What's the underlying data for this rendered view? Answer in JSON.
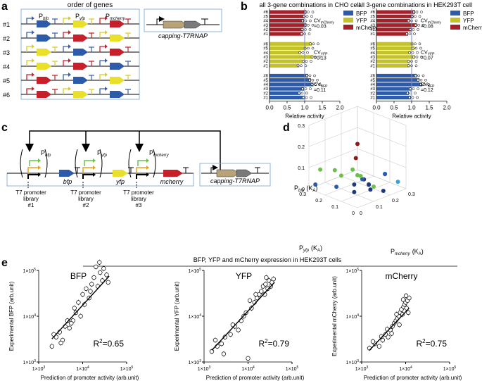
{
  "panel_a": {
    "letter": "a",
    "title": "order of genes",
    "p_bfp": "P",
    "p_bfp_sub": "bfp",
    "p_yfp": "P",
    "p_yfp_sub": "yfp",
    "p_mcherry": "P",
    "p_mcherry_sub": "mcherry",
    "construct_labels": [
      "#1",
      "#2",
      "#3",
      "#4",
      "#5",
      "#6"
    ],
    "construct_orders": [
      [
        "blue",
        "yellow",
        "red"
      ],
      [
        "blue",
        "red",
        "yellow"
      ],
      [
        "yellow",
        "blue",
        "red"
      ],
      [
        "yellow",
        "red",
        "blue"
      ],
      [
        "red",
        "blue",
        "yellow"
      ],
      [
        "red",
        "yellow",
        "blue"
      ]
    ],
    "helper_label": "capping-T7RNAP"
  },
  "panel_b": {
    "letter": "b",
    "cho": {
      "title": "all 3-gene combinations in CHO cell",
      "row_labels": [
        "#6",
        "#5",
        "#4",
        "#3",
        "#2",
        "#1"
      ],
      "groups": [
        {
          "name": "mCherry",
          "color": "#A6202A",
          "cv_main": "CV",
          "cv_sub": "mCherry",
          "cv_val": "=0.03",
          "values": [
            1.05,
            1.02,
            0.98,
            1.05,
            0.97,
            0.95
          ]
        },
        {
          "name": "YFP",
          "color": "#C4C22A",
          "cv_main": "CV",
          "cv_sub": "YFP",
          "cv_val": "=0.13",
          "values": [
            1.2,
            1.05,
            0.9,
            1.25,
            1.0,
            0.85
          ]
        },
        {
          "name": "BFP",
          "color": "#2D5AA9",
          "cv_main": "CV",
          "cv_sub": "BFP",
          "cv_val": "=0.11",
          "values": [
            1.1,
            1.18,
            1.25,
            0.98,
            0.88,
            1.0
          ]
        }
      ],
      "xlabel": "Relative activity",
      "xticks": [
        "0.0",
        "0.5",
        "1.0",
        "1.5",
        "2.0"
      ],
      "xlim": [
        0,
        2
      ]
    },
    "hek": {
      "title": "all 3-gene combinations in HEK293T cell",
      "row_labels": [
        "#6",
        "#5",
        "#4",
        "#3",
        "#2",
        "#1"
      ],
      "groups": [
        {
          "name": "mCherry",
          "color": "#A6202A",
          "cv_main": "CV",
          "cv_sub": "mCherry",
          "cv_val": "=0.08",
          "values": [
            1.1,
            1.05,
            0.95,
            1.15,
            1.0,
            0.9
          ]
        },
        {
          "name": "YFP",
          "color": "#C4C22A",
          "cv_main": "CV",
          "cv_sub": "YFP",
          "cv_val": "=0.07",
          "values": [
            1.05,
            1.08,
            0.98,
            1.1,
            0.95,
            0.95
          ]
        },
        {
          "name": "BFP",
          "color": "#2D5AA9",
          "cv_main": "CV",
          "cv_sub": "BFP",
          "cv_val": "=0.12",
          "values": [
            1.15,
            1.22,
            1.3,
            1.0,
            0.92,
            0.98
          ]
        }
      ],
      "xlabel": "Relative activity",
      "xticks": [
        "0.0",
        "0.5",
        "1.0",
        "1.5",
        "2.0"
      ],
      "xlim": [
        0,
        2
      ]
    },
    "legend": [
      "BFP",
      "YFP",
      "mCherry"
    ],
    "colors": {
      "bfp": "#2D5AA9",
      "yfp": "#C4C22A",
      "mcherry": "#A6202A"
    }
  },
  "panel_c": {
    "letter": "c",
    "p_bfp": "P",
    "p_bfp_sub": "bfp",
    "p_yfp": "P",
    "p_yfp_sub": "yfp",
    "p_mcherry": "P",
    "p_mcherry_sub": "mcherry",
    "gene_bfp": "bfp",
    "gene_yfp": "yfp",
    "gene_mcherry": "mcherry",
    "lib1": [
      "T7 promoter",
      "library",
      "#1"
    ],
    "lib2": [
      "T7 promoter",
      "library",
      "#2"
    ],
    "lib3": [
      "T7 promoter",
      "library",
      "#3"
    ],
    "helper_label": "capping-T7RNAP"
  },
  "panel_d": {
    "letter": "d",
    "z_label": "P",
    "z_sub": "bfp",
    "z_unit": "(K",
    "z_unit_sub": "A",
    "z_close": ")",
    "y_label": "P",
    "y_sub": "yfp",
    "y_unit": "(K",
    "y_unit_sub": "A",
    "y_close": ")",
    "x_label": "P",
    "x_sub": "mcherry",
    "x_unit": "(K",
    "x_unit_sub": "A",
    "x_close": ")",
    "z_ticks": [
      "0",
      "0.1",
      "0.2",
      "0.3"
    ],
    "y_ticks": [
      "0.3",
      "0.2",
      "0.1",
      "0"
    ],
    "x_ticks": [
      "0",
      "0.1",
      "0.2",
      "0.3"
    ],
    "points": [
      {
        "x": 0.02,
        "y": 0.02,
        "z": 0.29,
        "color": "#8B1A1A"
      },
      {
        "x": 0.02,
        "y": 0.03,
        "z": 0.22,
        "color": "#8B1A1A"
      },
      {
        "x": 0.02,
        "y": 0.25,
        "z": 0.1,
        "color": "#6CC04A"
      },
      {
        "x": 0.06,
        "y": 0.2,
        "z": 0.1,
        "color": "#6CC04A"
      },
      {
        "x": 0.12,
        "y": 0.15,
        "z": 0.1,
        "color": "#6CC04A"
      },
      {
        "x": 0.02,
        "y": 0.12,
        "z": 0.11,
        "color": "#6CC04A"
      },
      {
        "x": 0.22,
        "y": 0.05,
        "z": 0.08,
        "color": "#3AA0DA"
      },
      {
        "x": 0.28,
        "y": 0.03,
        "z": 0.03,
        "color": "#3AA0DA"
      },
      {
        "x": 0.02,
        "y": 0.28,
        "z": 0.02,
        "color": "#2D5AA9"
      },
      {
        "x": 0.05,
        "y": 0.18,
        "z": 0.03,
        "color": "#2D5AA9"
      },
      {
        "x": 0.12,
        "y": 0.05,
        "z": 0.06,
        "color": "#2D5AA9"
      },
      {
        "x": 0.15,
        "y": 0.08,
        "z": 0.04,
        "color": "#1F3A7A"
      },
      {
        "x": 0.1,
        "y": 0.02,
        "z": 0.05,
        "color": "#1F3A7A"
      },
      {
        "x": 0.18,
        "y": 0.02,
        "z": 0.02,
        "color": "#1F3A7A"
      },
      {
        "x": 0.08,
        "y": 0.1,
        "z": 0.02,
        "color": "#1F3A7A"
      },
      {
        "x": 0.04,
        "y": 0.06,
        "z": 0.08,
        "color": "#1F3A7A"
      },
      {
        "x": 0.16,
        "y": 0.12,
        "z": 0.05,
        "color": "#1F3A7A"
      },
      {
        "x": 0.09,
        "y": 0.06,
        "z": 0.09,
        "color": "#2D5AA9"
      },
      {
        "x": 0.2,
        "y": 0.1,
        "z": 0.01,
        "color": "#6CC04A"
      },
      {
        "x": 0.14,
        "y": 0.14,
        "z": 0.07,
        "color": "#6CC04A"
      },
      {
        "x": 0.06,
        "y": 0.04,
        "z": 0.12,
        "color": "#6CC04A"
      },
      {
        "x": 0.25,
        "y": 0.08,
        "z": 0.06,
        "color": "#2D5AA9"
      }
    ]
  },
  "panel_e": {
    "letter": "e",
    "heading": "BFP, YFP and mCherry expression in HEK293T cells",
    "xlabel": "Prediction of promoter activity (arb.unit)",
    "xticks": [
      {
        "m": "1×10",
        "e": "3"
      },
      {
        "m": "1×10",
        "e": "4"
      },
      {
        "m": "1×10",
        "e": "5"
      }
    ],
    "yticks": [
      {
        "m": "1×10",
        "e": "3"
      },
      {
        "m": "1×10",
        "e": "4"
      },
      {
        "m": "1×10",
        "e": "5"
      }
    ],
    "charts": [
      {
        "title": "BFP",
        "ylabel": "Experimental BFP   (arb.unit)",
        "r2_main": "R",
        "r2_sup": "2",
        "r2_val": "=0.65",
        "fit": [
          [
            2000,
            3200
          ],
          [
            40000,
            75000
          ]
        ],
        "points": [
          [
            2000,
            2200
          ],
          [
            2500,
            3500
          ],
          [
            3000,
            4500
          ],
          [
            3500,
            3000
          ],
          [
            4000,
            6000
          ],
          [
            5000,
            5500
          ],
          [
            6000,
            8000
          ],
          [
            7000,
            12000
          ],
          [
            8000,
            20000
          ],
          [
            9000,
            10000
          ],
          [
            10000,
            30000
          ],
          [
            12000,
            40000
          ],
          [
            14000,
            25000
          ],
          [
            16000,
            50000
          ],
          [
            18000,
            70000
          ],
          [
            20000,
            120000
          ],
          [
            22000,
            45000
          ],
          [
            25000,
            90000
          ],
          [
            28000,
            60000
          ],
          [
            30000,
            110000
          ],
          [
            35000,
            80000
          ],
          [
            38000,
            55000
          ],
          [
            2200,
            4000
          ],
          [
            3200,
            2600
          ],
          [
            4500,
            8000
          ],
          [
            5500,
            7000
          ],
          [
            6500,
            15000
          ],
          [
            11000,
            18000
          ],
          [
            15000,
            35000
          ],
          [
            24000,
            150000
          ]
        ]
      },
      {
        "title": "YFP",
        "ylabel": "Experimental YFP   (arb.unit)",
        "r2_main": "R",
        "r2_sup": "2",
        "r2_val": "=0.79",
        "fit": [
          [
            1500,
            1800
          ],
          [
            40000,
            55000
          ]
        ],
        "points": [
          [
            1500,
            1700
          ],
          [
            2000,
            2200
          ],
          [
            2500,
            2500
          ],
          [
            3000,
            3500
          ],
          [
            4000,
            4000
          ],
          [
            5000,
            6000
          ],
          [
            6000,
            5000
          ],
          [
            7000,
            8000
          ],
          [
            8000,
            10000
          ],
          [
            9000,
            12000
          ],
          [
            10000,
            1200
          ],
          [
            12000,
            15000
          ],
          [
            14000,
            20000
          ],
          [
            16000,
            25000
          ],
          [
            18000,
            30000
          ],
          [
            20000,
            35000
          ],
          [
            22000,
            45000
          ],
          [
            25000,
            50000
          ],
          [
            28000,
            40000
          ],
          [
            30000,
            60000
          ],
          [
            35000,
            55000
          ],
          [
            38000,
            65000
          ],
          [
            1800,
            3000
          ],
          [
            2800,
            1500
          ],
          [
            4500,
            6500
          ],
          [
            11000,
            22000
          ],
          [
            15000,
            30000
          ],
          [
            24000,
            30000
          ],
          [
            26000,
            70000
          ],
          [
            33000,
            45000
          ]
        ]
      },
      {
        "title": "mCherry",
        "ylabel": "Experimental mCherry  (arb.unit)",
        "r2_main": "R",
        "r2_sup": "2",
        "r2_val": "=0.75",
        "fit": [
          [
            1500,
            1800
          ],
          [
            12000,
            15000
          ]
        ],
        "points": [
          [
            1500,
            2000
          ],
          [
            2000,
            2500
          ],
          [
            2500,
            2200
          ],
          [
            3000,
            3000
          ],
          [
            3500,
            4000
          ],
          [
            4000,
            3500
          ],
          [
            4500,
            5000
          ],
          [
            5000,
            6000
          ],
          [
            5500,
            7000
          ],
          [
            6000,
            8000
          ],
          [
            6500,
            9000
          ],
          [
            7000,
            10000
          ],
          [
            7500,
            12000
          ],
          [
            8000,
            14000
          ],
          [
            8500,
            11000
          ],
          [
            9000,
            16000
          ],
          [
            9500,
            18000
          ],
          [
            10000,
            20000
          ],
          [
            10500,
            15000
          ],
          [
            11000,
            22000
          ],
          [
            12000,
            25000
          ],
          [
            1800,
            2800
          ],
          [
            2800,
            3600
          ],
          [
            3800,
            5200
          ],
          [
            4800,
            4200
          ],
          [
            6200,
            11000
          ],
          [
            7200,
            6500
          ],
          [
            8800,
            23000
          ],
          [
            10200,
            28000
          ],
          [
            11500,
            12000
          ]
        ]
      }
    ]
  }
}
